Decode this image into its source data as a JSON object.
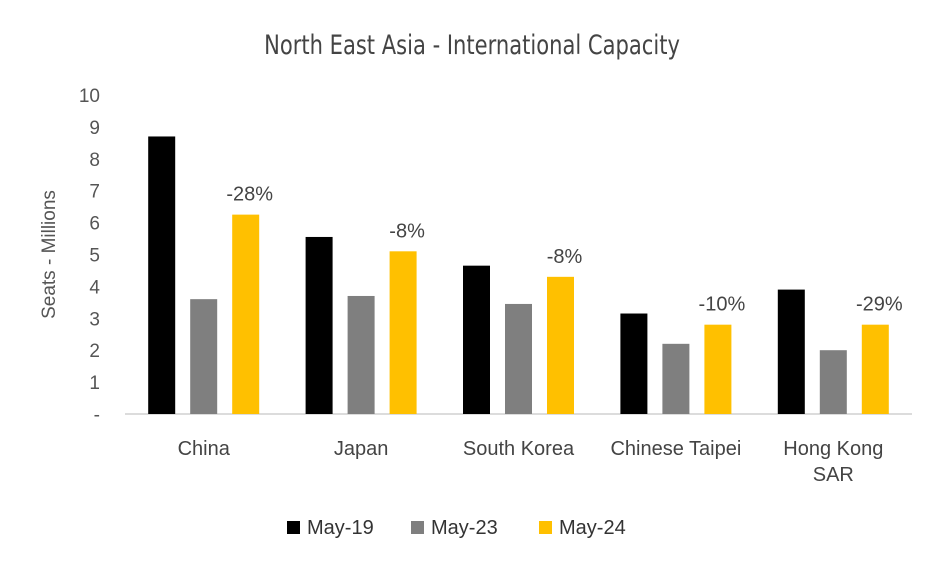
{
  "chart_data": {
    "type": "bar",
    "title": "North East Asia - International Capacity",
    "ylabel": "Seats - Millions",
    "xlabel": "",
    "ylim": [
      0,
      10
    ],
    "yticks": [
      "-",
      "1",
      "2",
      "3",
      "4",
      "5",
      "6",
      "7",
      "8",
      "9",
      "10"
    ],
    "categories": [
      [
        "China"
      ],
      [
        "Japan"
      ],
      [
        "South Korea"
      ],
      [
        "Chinese Taipei"
      ],
      [
        "Hong Kong",
        "SAR"
      ]
    ],
    "series": [
      {
        "name": "May-19",
        "color": "#000000",
        "values": [
          8.7,
          5.55,
          4.65,
          3.15,
          3.9
        ]
      },
      {
        "name": "May-23",
        "color": "#7f7f7f",
        "values": [
          3.6,
          3.7,
          3.45,
          2.2,
          2.0
        ]
      },
      {
        "name": "May-24",
        "color": "#ffc000",
        "values": [
          6.25,
          5.1,
          4.3,
          2.8,
          2.8
        ]
      }
    ],
    "annotations": [
      "-28%",
      "-8%",
      "-8%",
      "-10%",
      "-29%"
    ],
    "grid": false,
    "legend": "bottom"
  }
}
